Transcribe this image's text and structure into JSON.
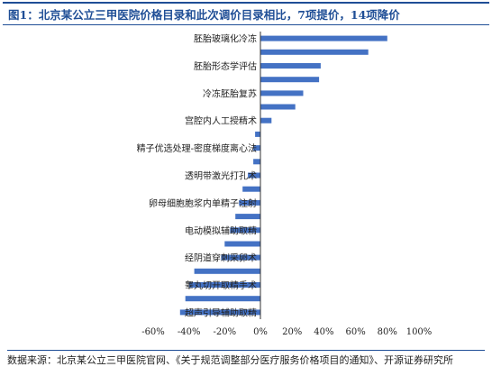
{
  "figure": {
    "title": "图1：北京某公立三甲医院价格目录和此次调价目录相比，7项提价，14项降价",
    "source": "数据来源：北京某公立三甲医院官网、《关于规范调整部分医疗服务价格项目的通知》、开源证券研究所"
  },
  "chart_data": {
    "type": "bar",
    "orientation": "horizontal",
    "title": "",
    "xlabel": "",
    "ylabel": "",
    "xlim": [
      -0.6,
      1.0
    ],
    "xticks": [
      -0.6,
      -0.4,
      -0.2,
      0,
      0.2,
      0.4,
      0.6,
      0.8,
      1.0
    ],
    "xtick_labels": [
      "-60%",
      "-40%",
      "-20%",
      "0%",
      "20%",
      "40%",
      "60%",
      "80%",
      "100%"
    ],
    "color": "#4472c4",
    "categories": [
      "胚胎玻璃化冷冻",
      "",
      "胚胎形态学评估",
      "",
      "冷冻胚胎复苏",
      "",
      "宫腔内人工授精术",
      "",
      "精子优选处理-密度梯度离心法",
      "",
      "透明带激光打孔术",
      "",
      "卵母细胞胞浆内单精子注射",
      "",
      "电动模拟辅助取精",
      "",
      "经阴道穿刺采卵术",
      "",
      "睾丸切开取精手术",
      "",
      "超声引导辅助取精"
    ],
    "values": [
      0.8,
      0.68,
      0.38,
      0.37,
      0.27,
      0.22,
      0.07,
      -0.03,
      -0.04,
      -0.04,
      -0.07,
      -0.1,
      -0.12,
      -0.14,
      -0.17,
      -0.2,
      -0.22,
      -0.37,
      -0.4,
      -0.42,
      -0.45
    ],
    "grid": false,
    "legend": "none"
  }
}
